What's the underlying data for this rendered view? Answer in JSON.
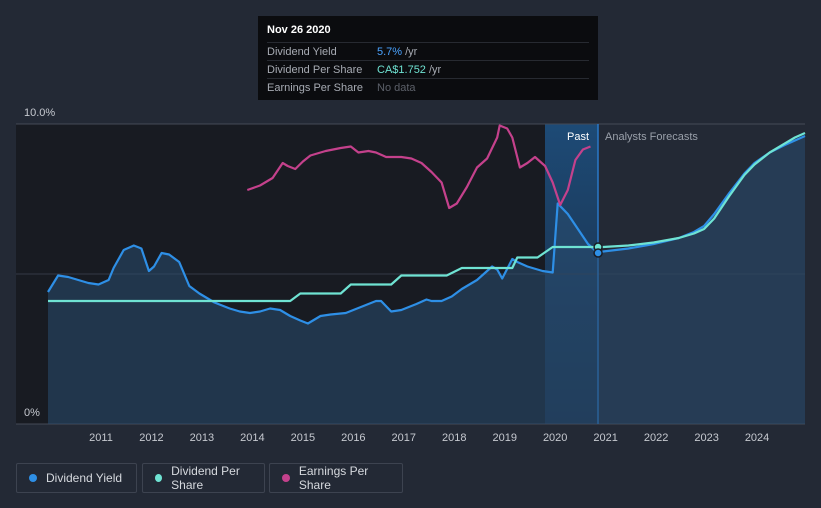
{
  "tooltip": {
    "date": "Nov 26 2020",
    "rows": [
      {
        "label": "Dividend Yield",
        "value": "5.7%",
        "unit": "/yr"
      },
      {
        "label": "Dividend Per Share",
        "value": "CA$1.752",
        "unit": "/yr"
      },
      {
        "label": "Earnings Per Share",
        "value": "No data",
        "unit": ""
      }
    ]
  },
  "legend": [
    {
      "label": "Dividend Yield",
      "color": "#2e8fe6"
    },
    {
      "label": "Dividend Per Share",
      "color": "#6fe3d3"
    },
    {
      "label": "Earnings Per Share",
      "color": "#c4418c"
    }
  ],
  "chart_data": {
    "type": "line",
    "y_axis_labels": [
      "10.0%",
      "0%"
    ],
    "ylim": [
      0,
      10
    ],
    "xlim": [
      2010.0,
      2025.0
    ],
    "x_ticks": [
      "2011",
      "2012",
      "2013",
      "2014",
      "2015",
      "2016",
      "2017",
      "2018",
      "2019",
      "2020",
      "2021",
      "2022",
      "2023",
      "2024"
    ],
    "regions": {
      "past": "Past",
      "forecast": "Analysts Forecasts"
    },
    "tooltip_date_x": 2020.9,
    "colors": {
      "yield": "#2e8fe6",
      "dps": "#6fe3d3",
      "eps": "#c4418c",
      "past_band": "#1e4f80"
    },
    "series": [
      {
        "name": "Dividend Yield",
        "points": [
          [
            2010.0,
            4.4
          ],
          [
            2010.2,
            4.95
          ],
          [
            2010.4,
            4.9
          ],
          [
            2010.6,
            4.8
          ],
          [
            2010.8,
            4.7
          ],
          [
            2011.0,
            4.65
          ],
          [
            2011.2,
            4.8
          ],
          [
            2011.3,
            5.2
          ],
          [
            2011.5,
            5.8
          ],
          [
            2011.7,
            5.95
          ],
          [
            2011.85,
            5.85
          ],
          [
            2012.0,
            5.1
          ],
          [
            2012.1,
            5.25
          ],
          [
            2012.25,
            5.7
          ],
          [
            2012.4,
            5.65
          ],
          [
            2012.6,
            5.4
          ],
          [
            2012.8,
            4.6
          ],
          [
            2013.0,
            4.35
          ],
          [
            2013.3,
            4.05
          ],
          [
            2013.6,
            3.85
          ],
          [
            2013.8,
            3.75
          ],
          [
            2014.0,
            3.7
          ],
          [
            2014.2,
            3.75
          ],
          [
            2014.4,
            3.85
          ],
          [
            2014.6,
            3.8
          ],
          [
            2014.8,
            3.6
          ],
          [
            2015.0,
            3.45
          ],
          [
            2015.15,
            3.35
          ],
          [
            2015.4,
            3.6
          ],
          [
            2015.6,
            3.65
          ],
          [
            2015.9,
            3.7
          ],
          [
            2016.2,
            3.9
          ],
          [
            2016.5,
            4.1
          ],
          [
            2016.6,
            4.1
          ],
          [
            2016.8,
            3.75
          ],
          [
            2017.0,
            3.8
          ],
          [
            2017.3,
            4.0
          ],
          [
            2017.5,
            4.15
          ],
          [
            2017.6,
            4.1
          ],
          [
            2017.8,
            4.1
          ],
          [
            2018.0,
            4.25
          ],
          [
            2018.2,
            4.5
          ],
          [
            2018.5,
            4.8
          ],
          [
            2018.7,
            5.1
          ],
          [
            2018.8,
            5.25
          ],
          [
            2018.9,
            5.15
          ],
          [
            2019.0,
            4.85
          ],
          [
            2019.2,
            5.5
          ],
          [
            2019.3,
            5.4
          ],
          [
            2019.5,
            5.25
          ],
          [
            2019.8,
            5.1
          ],
          [
            2020.0,
            5.05
          ],
          [
            2020.1,
            7.35
          ],
          [
            2020.3,
            7.0
          ],
          [
            2020.5,
            6.5
          ],
          [
            2020.7,
            6.0
          ],
          [
            2020.9,
            5.7
          ],
          [
            2021.0,
            5.75
          ],
          [
            2021.5,
            5.85
          ],
          [
            2022.0,
            6.0
          ],
          [
            2022.5,
            6.2
          ],
          [
            2022.8,
            6.4
          ],
          [
            2023.0,
            6.6
          ],
          [
            2023.2,
            7.0
          ],
          [
            2023.5,
            7.7
          ],
          [
            2023.8,
            8.35
          ],
          [
            2024.0,
            8.7
          ],
          [
            2024.3,
            9.05
          ],
          [
            2024.6,
            9.3
          ],
          [
            2024.8,
            9.45
          ],
          [
            2025.0,
            9.6
          ]
        ]
      },
      {
        "name": "Dividend Per Share",
        "points": [
          [
            2010.0,
            4.1
          ],
          [
            2014.8,
            4.1
          ],
          [
            2015.0,
            4.35
          ],
          [
            2015.8,
            4.35
          ],
          [
            2016.0,
            4.65
          ],
          [
            2016.8,
            4.65
          ],
          [
            2017.0,
            4.95
          ],
          [
            2017.9,
            4.95
          ],
          [
            2018.2,
            5.2
          ],
          [
            2019.2,
            5.2
          ],
          [
            2019.3,
            5.55
          ],
          [
            2019.7,
            5.55
          ],
          [
            2020.0,
            5.9
          ],
          [
            2020.9,
            5.9
          ],
          [
            2021.0,
            5.9
          ],
          [
            2021.5,
            5.95
          ],
          [
            2022.0,
            6.05
          ],
          [
            2022.5,
            6.2
          ],
          [
            2022.8,
            6.35
          ],
          [
            2023.0,
            6.5
          ],
          [
            2023.2,
            6.85
          ],
          [
            2023.5,
            7.6
          ],
          [
            2023.8,
            8.3
          ],
          [
            2024.0,
            8.65
          ],
          [
            2024.3,
            9.05
          ],
          [
            2024.6,
            9.35
          ],
          [
            2024.8,
            9.55
          ],
          [
            2025.0,
            9.7
          ]
        ]
      },
      {
        "name": "Earnings Per Share",
        "points": [
          [
            2013.95,
            7.8
          ],
          [
            2014.2,
            7.95
          ],
          [
            2014.45,
            8.2
          ],
          [
            2014.65,
            8.7
          ],
          [
            2014.75,
            8.6
          ],
          [
            2014.9,
            8.5
          ],
          [
            2015.05,
            8.75
          ],
          [
            2015.2,
            8.95
          ],
          [
            2015.5,
            9.1
          ],
          [
            2015.8,
            9.2
          ],
          [
            2016.0,
            9.25
          ],
          [
            2016.15,
            9.05
          ],
          [
            2016.35,
            9.1
          ],
          [
            2016.5,
            9.05
          ],
          [
            2016.7,
            8.9
          ],
          [
            2017.0,
            8.9
          ],
          [
            2017.2,
            8.85
          ],
          [
            2017.4,
            8.7
          ],
          [
            2017.6,
            8.4
          ],
          [
            2017.8,
            8.05
          ],
          [
            2017.95,
            7.2
          ],
          [
            2018.1,
            7.35
          ],
          [
            2018.3,
            7.9
          ],
          [
            2018.5,
            8.55
          ],
          [
            2018.7,
            8.85
          ],
          [
            2018.9,
            9.55
          ],
          [
            2018.95,
            9.95
          ],
          [
            2019.1,
            9.85
          ],
          [
            2019.2,
            9.55
          ],
          [
            2019.35,
            8.55
          ],
          [
            2019.5,
            8.7
          ],
          [
            2019.65,
            8.9
          ],
          [
            2019.85,
            8.6
          ],
          [
            2020.0,
            8.05
          ],
          [
            2020.15,
            7.3
          ],
          [
            2020.3,
            7.8
          ],
          [
            2020.45,
            8.8
          ],
          [
            2020.6,
            9.15
          ],
          [
            2020.75,
            9.25
          ]
        ]
      }
    ]
  }
}
